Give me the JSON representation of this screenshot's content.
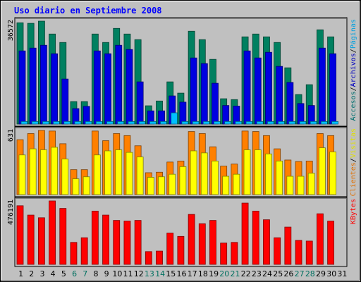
{
  "title": "Uso diario en Septiembre 2008",
  "panels": {
    "traffic": {
      "max_label": "36572",
      "legend": [
        {
          "text": "Accesos",
          "color": "#006f6f"
        },
        {
          "text": "/",
          "color": "#000000"
        },
        {
          "text": "Archivos",
          "color": "#0000c0"
        },
        {
          "text": "/",
          "color": "#000000"
        },
        {
          "text": "Páginas",
          "color": "#00a0e0"
        }
      ]
    },
    "visits": {
      "max_label": "631",
      "legend": [
        {
          "text": "Clientes",
          "color": "#e07000"
        },
        {
          "text": "/",
          "color": "#000000"
        },
        {
          "text": "Visitas",
          "color": "#e0e000"
        }
      ]
    },
    "kbytes": {
      "max_label": "476191",
      "legend": [
        {
          "text": "KBytes",
          "color": "#ff0000"
        }
      ]
    }
  },
  "chart_data": {
    "type": "bar",
    "title": "Uso diario en Septiembre 2008",
    "categories": [
      "1",
      "2",
      "3",
      "4",
      "5",
      "6",
      "7",
      "8",
      "9",
      "10",
      "11",
      "12",
      "13",
      "14",
      "15",
      "16",
      "17",
      "18",
      "19",
      "20",
      "21",
      "22",
      "23",
      "24",
      "25",
      "26",
      "27",
      "28",
      "29",
      "30",
      "31"
    ],
    "weekend_days": [
      "6",
      "7",
      "13",
      "14",
      "20",
      "21",
      "27",
      "28"
    ],
    "panels": [
      {
        "name": "traffic",
        "ylim": [
          0,
          36572
        ],
        "series": [
          {
            "name": "Accesos",
            "color": "#008060",
            "values": [
              36000,
              35800,
              36572,
              32000,
              29000,
              8000,
              8000,
              32000,
              29000,
              34000,
              32000,
              30000,
              6500,
              8200,
              15000,
              11000,
              33000,
              30000,
              23000,
              9000,
              8700,
              31000,
              32000,
              31000,
              29000,
              20000,
              10500,
              14000,
              33500,
              31000,
              0
            ]
          },
          {
            "name": "Archivos",
            "color": "#0000e0",
            "values": [
              26000,
              27000,
              28000,
              25000,
              16000,
              5500,
              6300,
              26000,
              25000,
              28000,
              26500,
              15000,
              4700,
              4700,
              10000,
              7800,
              23500,
              21500,
              14500,
              6600,
              6400,
              26000,
              23500,
              25500,
              20500,
              14800,
              7300,
              6600,
              27000,
              25000,
              0
            ]
          },
          {
            "name": "Páginas",
            "color": "#00c0ff",
            "values": [
              900,
              900,
              900,
              900,
              900,
              900,
              900,
              900,
              900,
              900,
              900,
              900,
              900,
              900,
              4000,
              900,
              900,
              900,
              900,
              900,
              900,
              900,
              900,
              900,
              900,
              900,
              900,
              900,
              900,
              900,
              0
            ]
          }
        ]
      },
      {
        "name": "visits",
        "ylim": [
          0,
          631
        ],
        "series": [
          {
            "name": "Clientes",
            "color": "#ff8000",
            "values": [
              540,
              600,
              631,
              625,
              500,
              245,
              245,
              625,
              530,
              600,
              580,
              480,
              215,
              220,
              320,
              330,
              620,
              600,
              470,
              280,
              300,
              625,
              620,
              580,
              450,
              340,
              325,
              330,
              600,
              580,
              0
            ]
          },
          {
            "name": "Visitas",
            "color": "#ffff00",
            "values": [
              390,
              450,
              440,
              465,
              350,
              155,
              175,
              390,
              430,
              440,
              415,
              370,
              170,
              175,
              200,
              275,
              430,
              410,
              330,
              180,
              200,
              440,
              440,
              400,
              330,
              180,
              180,
              210,
              460,
              420,
              0
            ]
          }
        ]
      },
      {
        "name": "kbytes",
        "ylim": [
          0,
          476191
        ],
        "series": [
          {
            "name": "KBytes",
            "color": "#ff0000",
            "values": [
              440000,
              370000,
              350000,
              476191,
              420000,
              165000,
              200000,
              400000,
              370000,
              330000,
              325000,
              330000,
              96000,
              100000,
              235000,
              210000,
              375000,
              305000,
              330000,
              160000,
              165000,
              460000,
              400000,
              335000,
              200000,
              280000,
              180000,
              175000,
              380000,
              325000,
              0
            ]
          }
        ]
      }
    ]
  }
}
